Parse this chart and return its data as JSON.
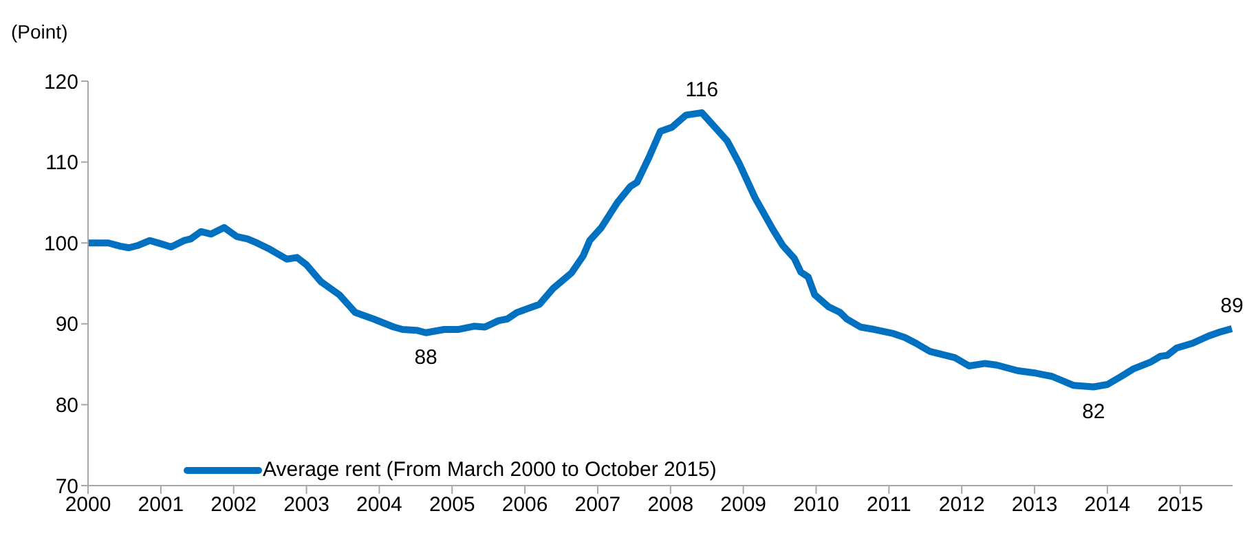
{
  "chart_data": {
    "type": "line",
    "ylabel": "(Point)",
    "x": [
      2000.0,
      2000.28,
      2000.44,
      2000.56,
      2000.69,
      2000.85,
      2001.0,
      2001.14,
      2001.32,
      2001.41,
      2001.55,
      2001.69,
      2001.87,
      2002.04,
      2002.19,
      2002.32,
      2002.5,
      2002.73,
      2002.87,
      2003.0,
      2003.2,
      2003.45,
      2003.67,
      2003.92,
      2004.2,
      2004.32,
      2004.51,
      2004.64,
      2004.89,
      2005.08,
      2005.3,
      2005.45,
      2005.64,
      2005.76,
      2005.89,
      2006.2,
      2006.39,
      2006.64,
      2006.8,
      2006.89,
      2007.05,
      2007.27,
      2007.45,
      2007.54,
      2007.7,
      2007.86,
      2008.02,
      2008.21,
      2008.43,
      2008.59,
      2008.78,
      2008.94,
      2009.16,
      2009.41,
      2009.54,
      2009.7,
      2009.79,
      2009.89,
      2009.98,
      2010.17,
      2010.33,
      2010.42,
      2010.61,
      2010.8,
      2011.06,
      2011.22,
      2011.37,
      2011.56,
      2011.91,
      2012.1,
      2012.32,
      2012.48,
      2012.77,
      2013.02,
      2013.24,
      2013.53,
      2013.81,
      2014.0,
      2014.19,
      2014.35,
      2014.6,
      2014.73,
      2014.82,
      2014.95,
      2015.17,
      2015.39,
      2015.55,
      2015.71
    ],
    "series": [
      {
        "name": "Average rent (From March 2000 to October 2015)",
        "color": "#0070c0",
        "values": [
          100,
          100,
          99.6,
          99.4,
          99.7,
          100.3,
          99.9,
          99.5,
          100.3,
          100.5,
          101.4,
          101.1,
          101.9,
          100.8,
          100.5,
          100,
          99.2,
          98,
          98.2,
          97.3,
          95.2,
          93.6,
          91.4,
          90.6,
          89.6,
          89.3,
          89.2,
          88.9,
          89.3,
          89.3,
          89.7,
          89.6,
          90.4,
          90.6,
          91.4,
          92.4,
          94.4,
          96.3,
          98.4,
          100.3,
          101.9,
          105,
          107,
          107.5,
          110.5,
          113.8,
          114.3,
          115.8,
          116.1,
          114.5,
          112.6,
          109.9,
          105.6,
          101.6,
          99.7,
          98.1,
          96.4,
          95.8,
          93.6,
          92.1,
          91.4,
          90.6,
          89.6,
          89.3,
          88.8,
          88.3,
          87.6,
          86.6,
          85.8,
          84.8,
          85.1,
          84.9,
          84.2,
          83.9,
          83.5,
          82.4,
          82.2,
          82.5,
          83.5,
          84.4,
          85.3,
          86,
          86.1,
          87,
          87.6,
          88.5,
          89,
          89.4
        ]
      }
    ],
    "xlim": [
      2000,
      2015.72
    ],
    "xticks": [
      2000,
      2001,
      2002,
      2003,
      2004,
      2005,
      2006,
      2007,
      2008,
      2009,
      2010,
      2011,
      2012,
      2013,
      2014,
      2015
    ],
    "ylim": [
      70,
      120
    ],
    "yticks": [
      70,
      80,
      90,
      100,
      110,
      120
    ],
    "annotations": [
      {
        "text": "88",
        "x": 2004.64,
        "y": 88.9
      },
      {
        "text": "116",
        "x": 2008.43,
        "y": 116.1
      },
      {
        "text": "82",
        "x": 2013.81,
        "y": 82.2
      },
      {
        "text": "89",
        "x": 2015.71,
        "y": 89.4
      }
    ],
    "grid": false,
    "legend": "bottom left",
    "marker": "none",
    "line_style": "solid"
  }
}
